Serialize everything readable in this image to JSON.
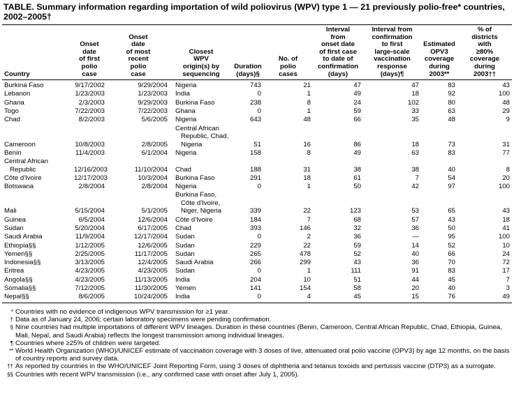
{
  "title": "TABLE. Summary information regarding importation of wild poliovirus (WPV) type 1 — 21 previously polio-free* countries, 2002–2005†",
  "table": {
    "headers": [
      [
        "Country"
      ],
      [
        "Onset",
        "date",
        "of first",
        "polio",
        "case"
      ],
      [
        "Onset",
        "date",
        "of most",
        "recent",
        "polio",
        "case"
      ],
      [
        "Closest",
        "WPV",
        "origin(s) by",
        "sequencing"
      ],
      [
        "Duration",
        "(days)§"
      ],
      [
        "No. of",
        "polio",
        "cases"
      ],
      [
        "Interval",
        "from",
        "onset date",
        "of first case",
        "to date of",
        "confirmation",
        "(days)"
      ],
      [
        "Interval from",
        "confirmation",
        "to first",
        "large-scale",
        "vaccination",
        "response",
        "(days)¶"
      ],
      [
        "Estimated",
        "OPV3",
        "coverage",
        "during",
        "2003**"
      ],
      [
        "% of",
        "districts",
        "with",
        "≥80%",
        "coverage",
        "during",
        "2003††"
      ]
    ],
    "rows": [
      [
        "Burkina Faso",
        "9/17/2002",
        "9/29/2004",
        "Nigeria",
        "743",
        "21",
        "47",
        "47",
        "83",
        "43"
      ],
      [
        "Lebanon",
        "1/23/2003",
        "1/23/2003",
        "India",
        "0",
        "1",
        "49",
        "18",
        "92",
        "100"
      ],
      [
        "Ghana",
        "2/3/2003",
        "9/29/2003",
        "Burkina Faso",
        "238",
        "8",
        "24",
        "102",
        "80",
        "48"
      ],
      [
        "Togo",
        "7/22/2003",
        "7/22/2003",
        "Ghana",
        "0",
        "1",
        "59",
        "33",
        "63",
        "29"
      ],
      [
        "Chad",
        "8/2/2003",
        "5/6/2005",
        "Nigeria",
        "643",
        "48",
        "66",
        "35",
        "48",
        "9"
      ],
      [
        "Cameroon",
        "10/8/2003",
        "2/8/2005",
        "Central African Republic, Chad, Nigeria",
        "51",
        "16",
        "86",
        "18",
        "73",
        "31"
      ],
      [
        "Benin",
        "11/4/2003",
        "6/1/2004",
        "Nigeria",
        "158",
        "8",
        "49",
        "63",
        "83",
        "77"
      ],
      [
        "Central African Republic",
        "12/16/2003",
        "11/10/2004",
        "Chad",
        "188",
        "31",
        "38",
        "38",
        "40",
        "8"
      ],
      [
        "Côte d'Ivoire",
        "12/17/2003",
        "10/3/2004",
        "Burkina Faso",
        "291",
        "18",
        "61",
        "7",
        "54",
        "20"
      ],
      [
        "Botswana",
        "2/8/2004",
        "2/8/2004",
        "Nigeria",
        "0",
        "1",
        "50",
        "42",
        "97",
        "100"
      ],
      [
        "Mali",
        "5/15/2004",
        "5/1/2005",
        "Burkina Faso, Côte d'Ivoire, Niger, Nigeria",
        "339",
        "22",
        "123",
        "53",
        "65",
        "43"
      ],
      [
        "Guinea",
        "6/5/2004",
        "12/6/2004",
        "Côte d'Ivoire",
        "184",
        "7",
        "68",
        "57",
        "43",
        "18"
      ],
      [
        "Sudan",
        "5/20/2004",
        "6/17/2005",
        "Chad",
        "393",
        "146",
        "32",
        "36",
        "50",
        "41"
      ],
      [
        "Saudi Arabia",
        "11/9/2004",
        "12/17/2004",
        "Sudan",
        "0",
        "2",
        "36",
        "—",
        "95",
        "100"
      ],
      [
        "Ethiopia§§",
        "1/12/2005",
        "12/6/2005",
        "Sudan",
        "229",
        "22",
        "59",
        "14",
        "52",
        "10"
      ],
      [
        "Yemen§§",
        "2/25/2005",
        "11/17/2005",
        "Sudan",
        "265",
        "478",
        "52",
        "40",
        "66",
        "24"
      ],
      [
        "Indonesia§§",
        "3/13/2005",
        "12/4/2005",
        "Saudi Arabia",
        "266",
        "299",
        "43",
        "36",
        "70",
        "72"
      ],
      [
        "Eritrea",
        "4/23/2005",
        "4/23/2005",
        "Sudan",
        "0",
        "1",
        "111",
        "91",
        "83",
        "17"
      ],
      [
        "Angola§§",
        "4/23/2005",
        "11/13/2005",
        "India",
        "204",
        "10",
        "51",
        "44",
        "45",
        "7"
      ],
      [
        "Somalia§§",
        "7/12/2005",
        "11/30/2005",
        "Yemen",
        "141",
        "154",
        "58",
        "20",
        "40",
        "3"
      ],
      [
        "Nepal§§",
        "8/6/2005",
        "10/24/2005",
        "India",
        "0",
        "4",
        "45",
        "15",
        "76",
        "49"
      ]
    ]
  },
  "footnotes": [
    {
      "marker": "*",
      "text": "Countries with no evidence of indigenous WPV transmission for ≥1 year."
    },
    {
      "marker": "†",
      "text": "Data as of January 24, 2006; certain laboratory specimens were pending confirmation."
    },
    {
      "marker": "§",
      "text": "Nine countries had multiple importations of different WPV lineages. Duration in these countries (Benin, Cameroon, Central African Republic, Chad, Ethiopia, Guinea, Mali, Nepal, and Saudi Arabia) reflects the longest transmission among individual lineages."
    },
    {
      "marker": "¶",
      "text": "Countries where ≥25% of children were targeted."
    },
    {
      "marker": "**",
      "text": "World Health Organization (WHO)/UNICEF estimate of vaccination coverage with 3 doses of live, attenuated oral polio vaccine (OPV3) by age 12 months, on the basis of country reports and survey data."
    },
    {
      "marker": "††",
      "text": "As reported by countries in the WHO/UNICEF Joint Reporting Form, using 3 doses of diphtheria and tetanus toxoids and pertussis vaccine (DTP3) as a surrogate."
    },
    {
      "marker": "§§",
      "text": "Countries with recent WPV transmission (i.e., any confirmed case with onset after July 1, 2005)."
    }
  ]
}
